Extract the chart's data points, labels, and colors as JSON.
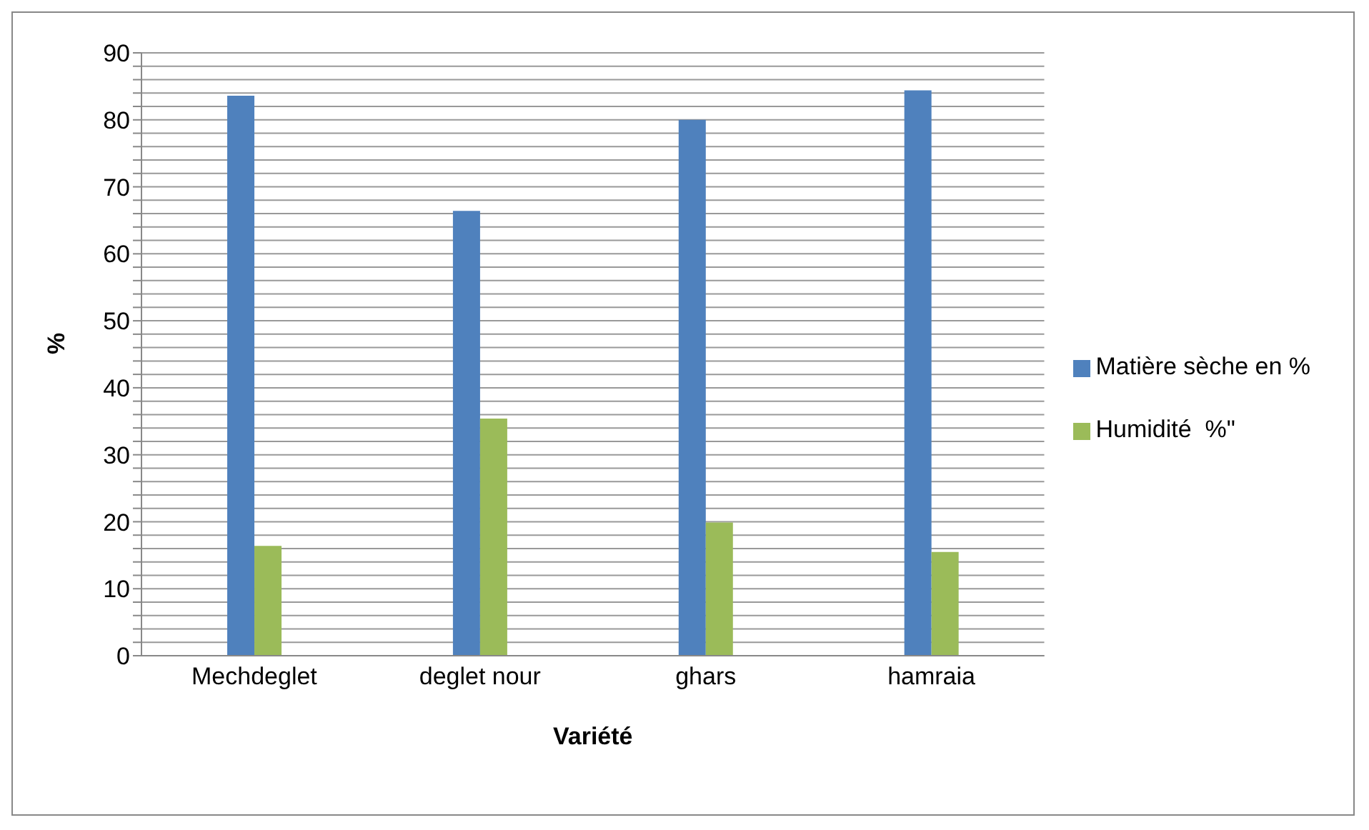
{
  "chart_data": {
    "type": "bar",
    "xlabel": "Variété",
    "ylabel": "%",
    "categories": [
      "Mechdeglet",
      "deglet nour",
      "ghars",
      "hamraia"
    ],
    "series": [
      {
        "name": "Matière sèche en %",
        "color": "#4f81bd",
        "values": [
          83.6,
          66.4,
          80.0,
          84.4
        ]
      },
      {
        "name": "Humidité  %\"",
        "color": "#9bbb59",
        "values": [
          16.4,
          35.4,
          19.9,
          15.5
        ]
      }
    ],
    "ylim": [
      0,
      90
    ],
    "yticks": [
      0,
      {
        "value": 2,
        "label": null
      },
      {
        "value": 4,
        "label": null
      },
      {
        "value": 6,
        "label": null
      },
      {
        "value": 8,
        "label": null
      },
      10,
      {
        "value": 12,
        "label": null
      },
      {
        "value": 14,
        "label": null
      },
      {
        "value": 16,
        "label": null
      },
      {
        "value": 18,
        "label": null
      },
      20,
      {
        "value": 22,
        "label": null
      },
      {
        "value": 24,
        "label": null
      },
      {
        "value": 26,
        "label": null
      },
      {
        "value": 28,
        "label": null
      },
      30,
      {
        "value": 32,
        "label": null
      },
      {
        "value": 34,
        "label": null
      },
      {
        "value": 36,
        "label": null
      },
      {
        "value": 38,
        "label": null
      },
      40,
      {
        "value": 42,
        "label": null
      },
      {
        "value": 44,
        "label": null
      },
      {
        "value": 46,
        "label": null
      },
      {
        "value": 48,
        "label": null
      },
      50,
      {
        "value": 52,
        "label": null
      },
      {
        "value": 54,
        "label": null
      },
      {
        "value": 56,
        "label": null
      },
      {
        "value": 58,
        "label": null
      },
      60,
      {
        "value": 62,
        "label": null
      },
      {
        "value": 64,
        "label": null
      },
      {
        "value": 66,
        "label": null
      },
      {
        "value": 68,
        "label": null
      },
      70,
      {
        "value": 72,
        "label": null
      },
      {
        "value": 74,
        "label": null
      },
      {
        "value": 76,
        "label": null
      },
      {
        "value": 78,
        "label": null
      },
      80,
      {
        "value": 82,
        "label": null
      },
      {
        "value": 84,
        "label": null
      },
      {
        "value": 86,
        "label": null
      },
      {
        "value": 88,
        "label": null
      },
      90
    ],
    "grid": "y",
    "legend": "right"
  }
}
